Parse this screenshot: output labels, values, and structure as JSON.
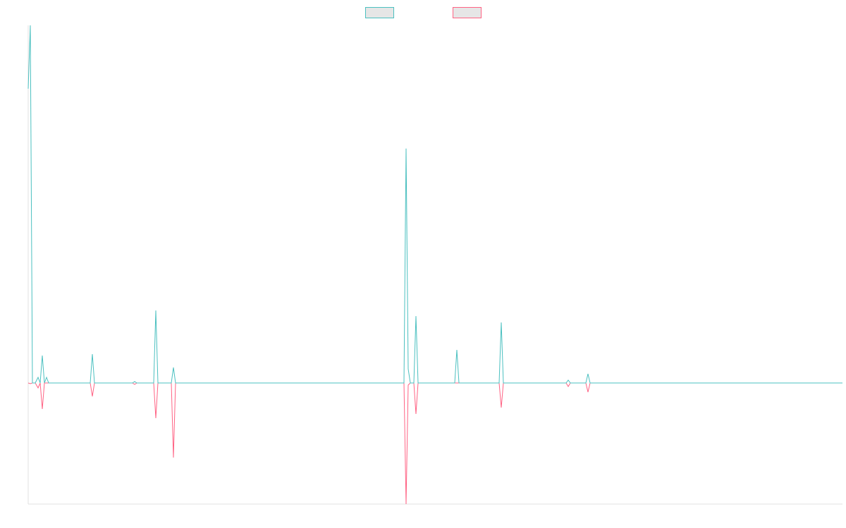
{
  "chart_data": {
    "type": "line",
    "x": [
      0,
      3,
      6,
      10,
      14,
      17,
      20,
      23,
      26,
      29,
      88,
      91,
      94,
      148,
      151,
      154,
      178,
      181,
      184,
      203,
      206,
      209,
      533,
      536,
      539,
      542,
      547,
      550,
      553,
      605,
      608,
      611,
      668,
      671,
      674,
      763,
      766,
      769,
      791,
      794,
      797,
      1155
    ],
    "xlim": [
      0,
      1155
    ],
    "ylim": [
      -172,
      508
    ],
    "series": [
      {
        "color": "#4bc0c0",
        "values": [
          418,
          508,
          0,
          0,
          8,
          0,
          39,
          0,
          8,
          0,
          0,
          41,
          0,
          0,
          2,
          0,
          0,
          103,
          0,
          0,
          22,
          0,
          0,
          333,
          20,
          0,
          0,
          95,
          0,
          0,
          47,
          0,
          0,
          86,
          0,
          0,
          4,
          0,
          0,
          13,
          0,
          0
        ]
      },
      {
        "color": "#ff6384",
        "values": [
          0,
          -1,
          0,
          0,
          -7,
          0,
          -37,
          0,
          0,
          0,
          0,
          -19,
          0,
          0,
          -2,
          0,
          0,
          -50,
          0,
          0,
          -106,
          0,
          0,
          -172,
          -3,
          0,
          0,
          -44,
          0,
          0,
          0,
          0,
          0,
          -35,
          0,
          0,
          -5,
          0,
          0,
          -13,
          0,
          0
        ]
      }
    ]
  }
}
